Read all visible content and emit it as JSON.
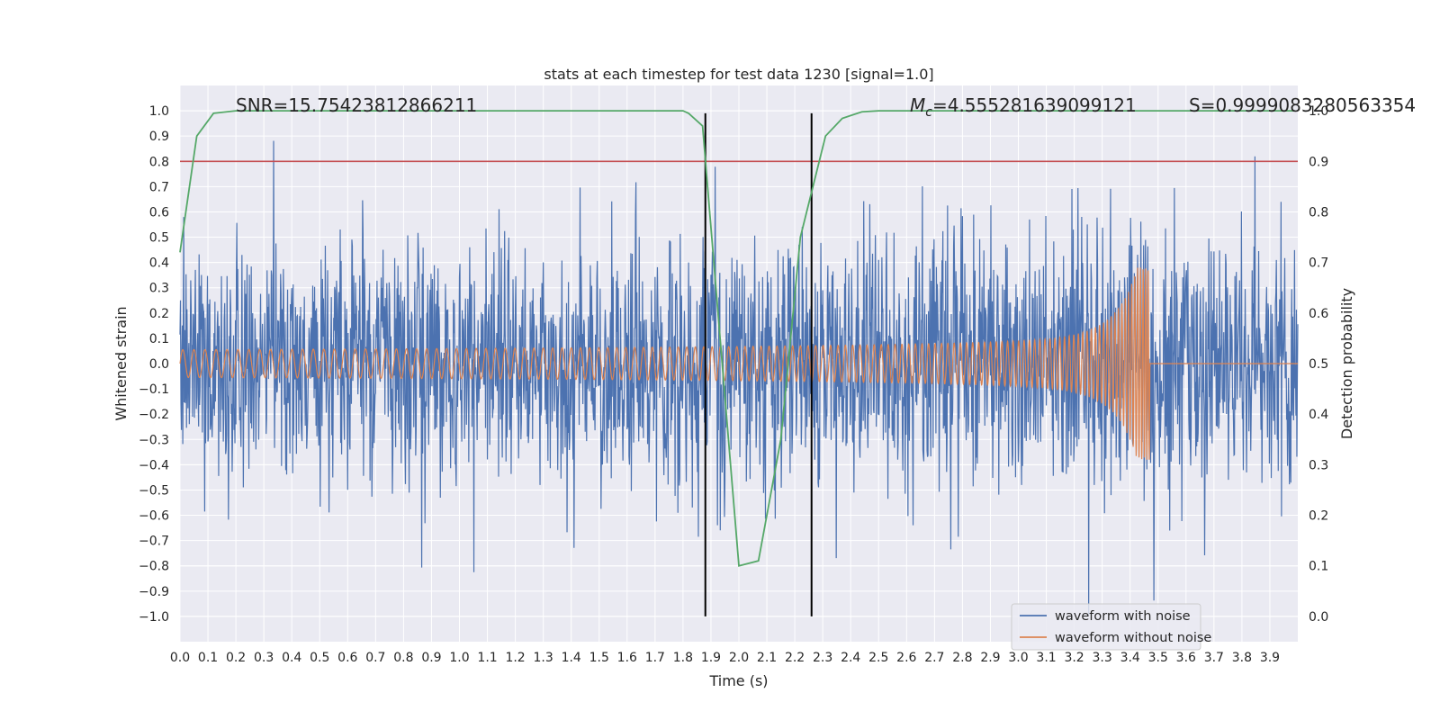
{
  "chart_data": {
    "type": "line",
    "title": "stats at each timestep for test data 1230 [signal=1.0]",
    "xlabel": "Time (s)",
    "ylabel_left": "Whitened strain",
    "ylabel_right": "Detection probability",
    "xlim": [
      0.0,
      4.0
    ],
    "ylim_left": [
      -1.1,
      1.1
    ],
    "ylim_right": [
      -0.05,
      1.05
    ],
    "x_ticks": [
      "0.0",
      "0.1",
      "0.2",
      "0.3",
      "0.4",
      "0.5",
      "0.6",
      "0.7",
      "0.8",
      "0.9",
      "1.0",
      "1.1",
      "1.2",
      "1.3",
      "1.4",
      "1.5",
      "1.6",
      "1.7",
      "1.8",
      "1.9",
      "2.0",
      "2.1",
      "2.2",
      "2.3",
      "2.4",
      "2.5",
      "2.6",
      "2.7",
      "2.8",
      "2.9",
      "3.0",
      "3.1",
      "3.2",
      "3.3",
      "3.4",
      "3.5",
      "3.6",
      "3.7",
      "3.8",
      "3.9"
    ],
    "y_ticks_left": [
      "1.0",
      "0.9",
      "0.8",
      "0.7",
      "0.6",
      "0.5",
      "0.4",
      "0.3",
      "0.2",
      "0.1",
      "0.0",
      "−0.1",
      "−0.2",
      "−0.3",
      "−0.4",
      "−0.5",
      "−0.6",
      "−0.7",
      "−0.8",
      "−0.9",
      "−1.0"
    ],
    "y_ticks_right": [
      "1.0",
      "0.9",
      "0.8",
      "0.7",
      "0.6",
      "0.5",
      "0.4",
      "0.3",
      "0.2",
      "0.1",
      "0.0"
    ],
    "grid": true,
    "annotations": {
      "snr": "SNR=15.75423812866211",
      "mc_symbol": "M",
      "mc_sub": "c",
      "mc_value": "=4.555281639099121",
      "s": "S=0.9999083280563354"
    },
    "threshold_line": {
      "value": 0.9,
      "axis": "right",
      "color": "#c44e52"
    },
    "vertical_lines": {
      "x": [
        1.88,
        2.26
      ],
      "color": "#000000"
    },
    "series": [
      {
        "name": "waveform with noise",
        "axis": "left",
        "color": "#4c72b0",
        "description_range": [
          -1.0,
          1.0
        ],
        "envelope_sigma": 0.25
      },
      {
        "name": "waveform without noise",
        "axis": "left",
        "color": "#dd8452",
        "chirp_start_amplitude": 0.055,
        "chirp_peak_amplitude": 0.38,
        "merger_time": 3.47
      },
      {
        "axis": "right",
        "color": "#55a868",
        "x": [
          0.0,
          0.06,
          0.12,
          0.2,
          0.5,
          1.0,
          1.5,
          1.8,
          1.82,
          1.87,
          2.0,
          2.07,
          2.15,
          2.22,
          2.31,
          2.37,
          2.44,
          2.5,
          3.0,
          3.5,
          3.99
        ],
        "values": [
          0.72,
          0.95,
          0.995,
          1.0,
          1.0,
          1.0,
          1.0,
          1.0,
          0.995,
          0.97,
          0.1,
          0.11,
          0.35,
          0.75,
          0.95,
          0.985,
          0.998,
          1.0,
          1.0,
          1.0,
          1.0
        ]
      }
    ],
    "legend": {
      "placement": "lower-right",
      "entries": [
        "waveform with noise",
        "waveform without noise"
      ]
    }
  }
}
